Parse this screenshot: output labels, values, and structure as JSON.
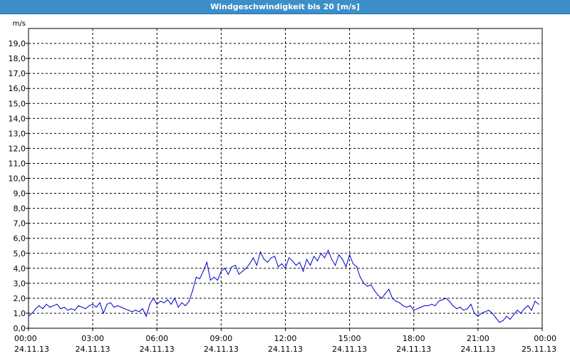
{
  "window": {
    "title": "Windgeschwindigkeit bis 20 [m/s]"
  },
  "chart_data": {
    "type": "line",
    "title": "Windgeschwindigkeit bis 20 [m/s]",
    "ylabel": "m/s",
    "xlabel": "",
    "ylim": [
      0,
      20
    ],
    "grid": true,
    "y_ticks": [
      "0,0",
      "1,0",
      "2,0",
      "3,0",
      "4,0",
      "5,0",
      "6,0",
      "7,0",
      "8,0",
      "9,0",
      "10,0",
      "11,0",
      "12,0",
      "13,0",
      "14,0",
      "15,0",
      "16,0",
      "17,0",
      "18,0",
      "19,0"
    ],
    "x_ticks": [
      {
        "time": "00:00",
        "date": "24.11.13"
      },
      {
        "time": "03:00",
        "date": "24.11.13"
      },
      {
        "time": "06:00",
        "date": "24.11.13"
      },
      {
        "time": "09:00",
        "date": "24.11.13"
      },
      {
        "time": "12:00",
        "date": "24.11.13"
      },
      {
        "time": "15:00",
        "date": "24.11.13"
      },
      {
        "time": "18:00",
        "date": "24.11.13"
      },
      {
        "time": "21:00",
        "date": "24.11.13"
      },
      {
        "time": "00:00",
        "date": "25.11.13"
      }
    ],
    "series": [
      {
        "color": "#0000cc",
        "x": [
          "24.11.13 00:00",
          "24.11.13 00:10",
          "24.11.13 00:20",
          "24.11.13 00:30",
          "24.11.13 00:40",
          "24.11.13 00:50",
          "24.11.13 01:00",
          "24.11.13 01:10",
          "24.11.13 01:20",
          "24.11.13 01:30",
          "24.11.13 01:40",
          "24.11.13 01:50",
          "24.11.13 02:00",
          "24.11.13 02:10",
          "24.11.13 02:20",
          "24.11.13 02:30",
          "24.11.13 02:40",
          "24.11.13 02:50",
          "24.11.13 03:00",
          "24.11.13 03:10",
          "24.11.13 03:20",
          "24.11.13 03:30",
          "24.11.13 03:40",
          "24.11.13 03:50",
          "24.11.13 04:00",
          "24.11.13 04:10",
          "24.11.13 04:20",
          "24.11.13 04:30",
          "24.11.13 04:40",
          "24.11.13 04:50",
          "24.11.13 05:00",
          "24.11.13 05:10",
          "24.11.13 05:20",
          "24.11.13 05:30",
          "24.11.13 05:40",
          "24.11.13 05:50",
          "24.11.13 06:00",
          "24.11.13 06:10",
          "24.11.13 06:20",
          "24.11.13 06:30",
          "24.11.13 06:40",
          "24.11.13 06:50",
          "24.11.13 07:00",
          "24.11.13 07:10",
          "24.11.13 07:20",
          "24.11.13 07:30",
          "24.11.13 07:40",
          "24.11.13 07:50",
          "24.11.13 08:00",
          "24.11.13 08:10",
          "24.11.13 08:20",
          "24.11.13 08:30",
          "24.11.13 08:40",
          "24.11.13 08:50",
          "24.11.13 09:00",
          "24.11.13 09:10",
          "24.11.13 09:20",
          "24.11.13 09:30",
          "24.11.13 09:40",
          "24.11.13 09:50",
          "24.11.13 10:00",
          "24.11.13 10:10",
          "24.11.13 10:20",
          "24.11.13 10:30",
          "24.11.13 10:40",
          "24.11.13 10:50",
          "24.11.13 11:00",
          "24.11.13 11:10",
          "24.11.13 11:20",
          "24.11.13 11:30",
          "24.11.13 11:40",
          "24.11.13 11:50",
          "24.11.13 12:00",
          "24.11.13 12:10",
          "24.11.13 12:20",
          "24.11.13 12:30",
          "24.11.13 12:40",
          "24.11.13 12:50",
          "24.11.13 13:00",
          "24.11.13 13:10",
          "24.11.13 13:20",
          "24.11.13 13:30",
          "24.11.13 13:40",
          "24.11.13 13:50",
          "24.11.13 14:00",
          "24.11.13 14:10",
          "24.11.13 14:20",
          "24.11.13 14:30",
          "24.11.13 14:40",
          "24.11.13 14:50",
          "24.11.13 15:00",
          "24.11.13 15:10",
          "24.11.13 15:20",
          "24.11.13 15:30",
          "24.11.13 15:40",
          "24.11.13 15:50",
          "24.11.13 16:00",
          "24.11.13 16:10",
          "24.11.13 16:20",
          "24.11.13 16:30",
          "24.11.13 16:40",
          "24.11.13 16:50",
          "24.11.13 17:00",
          "24.11.13 17:10",
          "24.11.13 17:20",
          "24.11.13 17:30",
          "24.11.13 17:40",
          "24.11.13 17:50",
          "24.11.13 18:00",
          "24.11.13 18:10",
          "24.11.13 18:20",
          "24.11.13 18:30",
          "24.11.13 18:40",
          "24.11.13 18:50",
          "24.11.13 19:00",
          "24.11.13 19:10",
          "24.11.13 19:20",
          "24.11.13 19:30",
          "24.11.13 19:40",
          "24.11.13 19:50",
          "24.11.13 20:00",
          "24.11.13 20:10",
          "24.11.13 20:20",
          "24.11.13 20:30",
          "24.11.13 20:40",
          "24.11.13 20:50",
          "24.11.13 21:00",
          "24.11.13 21:10",
          "24.11.13 21:20",
          "24.11.13 21:30",
          "24.11.13 21:40",
          "24.11.13 21:50",
          "24.11.13 22:00",
          "24.11.13 22:10",
          "24.11.13 22:20",
          "24.11.13 22:30",
          "24.11.13 22:40",
          "24.11.13 22:50",
          "24.11.13 23:00",
          "24.11.13 23:10",
          "24.11.13 23:20",
          "24.11.13 23:30",
          "24.11.13 23:40",
          "24.11.13 23:50"
        ],
        "values": [
          0.8,
          1.0,
          1.3,
          1.5,
          1.3,
          1.6,
          1.4,
          1.5,
          1.6,
          1.3,
          1.4,
          1.2,
          1.3,
          1.2,
          1.5,
          1.4,
          1.3,
          1.5,
          1.6,
          1.4,
          1.7,
          1.0,
          1.6,
          1.7,
          1.4,
          1.5,
          1.4,
          1.3,
          1.2,
          1.1,
          1.2,
          1.1,
          1.3,
          0.8,
          1.6,
          2.0,
          1.6,
          1.8,
          1.7,
          1.9,
          1.6,
          2.0,
          1.4,
          1.7,
          1.5,
          1.8,
          2.5,
          3.4,
          3.3,
          3.8,
          4.4,
          3.2,
          3.4,
          3.2,
          3.8,
          4.0,
          3.6,
          4.1,
          4.2,
          3.6,
          3.8,
          4.0,
          4.3,
          4.7,
          4.2,
          5.1,
          4.6,
          4.4,
          4.7,
          4.8,
          4.1,
          4.3,
          4.0,
          4.7,
          4.5,
          4.2,
          4.4,
          3.8,
          4.6,
          4.2,
          4.8,
          4.5,
          5.0,
          4.7,
          5.2,
          4.6,
          4.2,
          4.9,
          4.6,
          4.1,
          4.9,
          4.3,
          4.1,
          3.4,
          3.0,
          2.8,
          2.9,
          2.5,
          2.2,
          2.0,
          2.3,
          2.6,
          2.0,
          1.8,
          1.7,
          1.5,
          1.4,
          1.5,
          1.2,
          1.3,
          1.4,
          1.5,
          1.5,
          1.6,
          1.5,
          1.8,
          1.9,
          2.0,
          1.8,
          1.5,
          1.3,
          1.4,
          1.2,
          1.3,
          1.6,
          1.0,
          0.8,
          1.0,
          1.1,
          1.2,
          1.0,
          0.7,
          0.4,
          0.5,
          0.8,
          0.6,
          0.9,
          1.2,
          1.0,
          1.3,
          1.5,
          1.2,
          1.8,
          1.6
        ]
      }
    ]
  }
}
